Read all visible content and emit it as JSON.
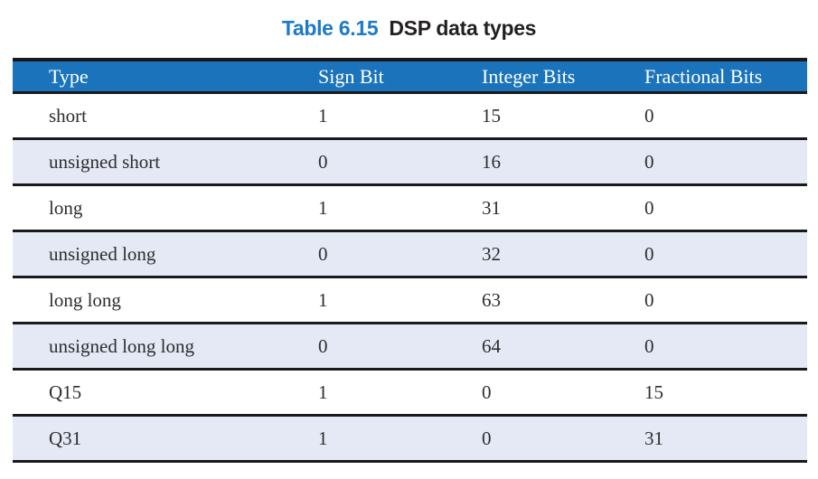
{
  "title": {
    "table_number": "Table 6.15",
    "caption": "DSP data types"
  },
  "colors": {
    "title_blue": "#1b7ac9",
    "header_blue": "#1b74bb",
    "row_alternate": "#e4e9f5",
    "rule_black": "#1a1a1a"
  },
  "table": {
    "columns": [
      "Type",
      "Sign Bit",
      "Integer Bits",
      "Fractional Bits"
    ],
    "column_keys": [
      "type",
      "sign-bit",
      "integer-bits",
      "fractional-bits"
    ],
    "rows": [
      [
        "short",
        "1",
        "15",
        "0"
      ],
      [
        "unsigned short",
        "0",
        "16",
        "0"
      ],
      [
        "long",
        "1",
        "31",
        "0"
      ],
      [
        "unsigned long",
        "0",
        "32",
        "0"
      ],
      [
        "long long",
        "1",
        "63",
        "0"
      ],
      [
        "unsigned long long",
        "0",
        "64",
        "0"
      ],
      [
        "Q15",
        "1",
        "0",
        "15"
      ],
      [
        "Q31",
        "1",
        "0",
        "31"
      ]
    ]
  }
}
